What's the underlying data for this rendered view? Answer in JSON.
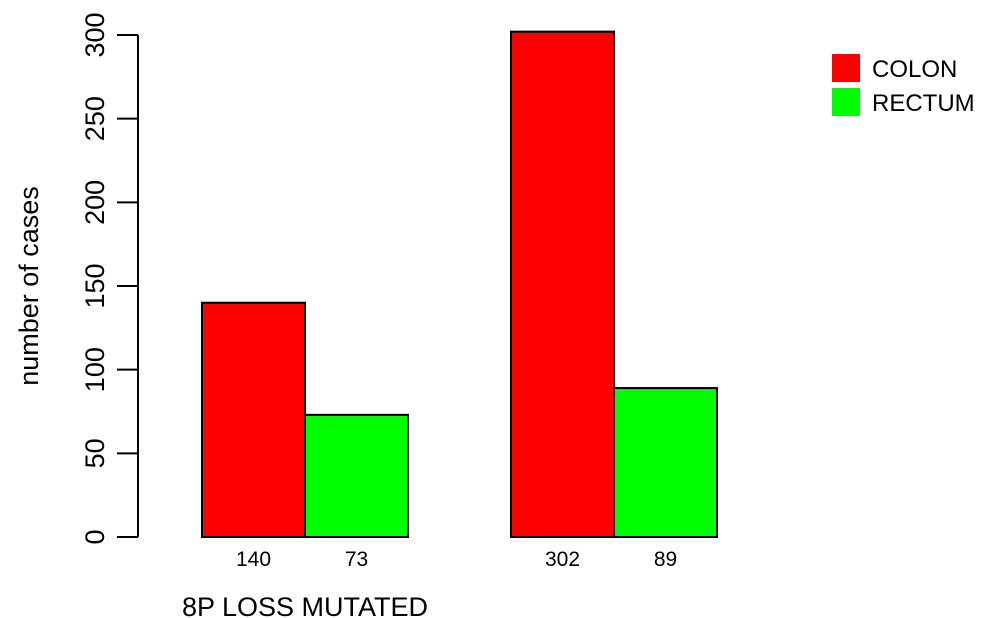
{
  "chart_data": {
    "type": "bar",
    "title": "",
    "xlabel": "8P LOSS MUTATED",
    "ylabel": "number of cases",
    "ylim": [
      0,
      300
    ],
    "yticks": [
      "0",
      "50",
      "100",
      "150",
      "200",
      "250",
      "300"
    ],
    "grid": false,
    "legend_position": "top-right",
    "groups": [
      "",
      ""
    ],
    "series": [
      {
        "name": "COLON",
        "color": "#ff0000",
        "values": [
          140,
          302
        ],
        "labels": [
          "140",
          "302"
        ]
      },
      {
        "name": "RECTUM",
        "color": "#00ff00",
        "values": [
          73,
          89
        ],
        "labels": [
          "73",
          "89"
        ]
      }
    ]
  }
}
